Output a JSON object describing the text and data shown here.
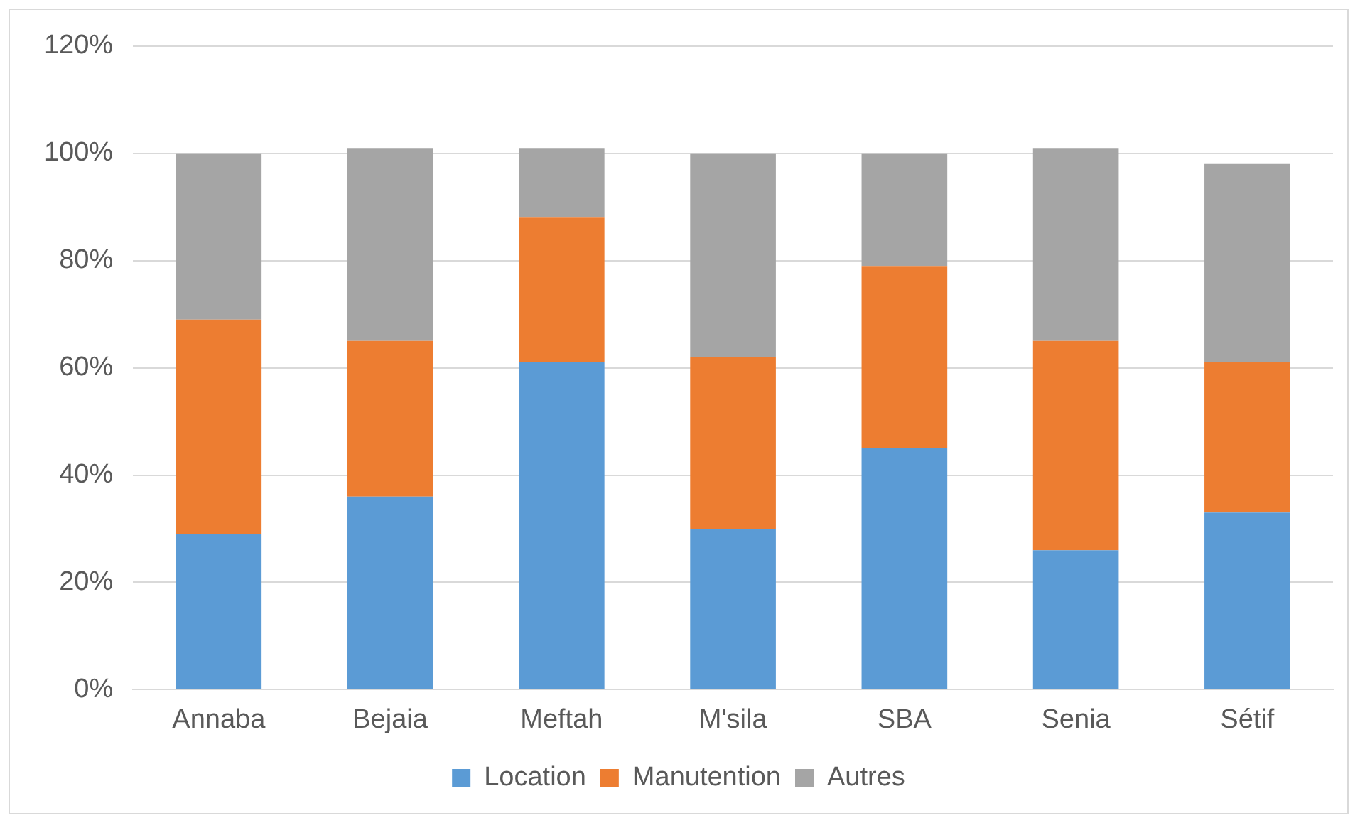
{
  "chart_data": {
    "type": "bar",
    "stacked": true,
    "categories": [
      "Annaba",
      "Bejaia",
      "Meftah",
      "M'sila",
      "SBA",
      "Senia",
      "Sétif"
    ],
    "series": [
      {
        "name": "Location",
        "color": "#5b9bd5",
        "values": [
          29,
          36,
          61,
          30,
          45,
          26,
          33
        ]
      },
      {
        "name": "Manutention",
        "color": "#ed7d31",
        "values": [
          40,
          29,
          27,
          32,
          34,
          39,
          28
        ]
      },
      {
        "name": "Autres",
        "color": "#a5a5a5",
        "values": [
          31,
          36,
          13,
          38,
          21,
          36,
          37
        ]
      }
    ],
    "ylim": [
      0,
      120
    ],
    "yticks": [
      {
        "value": 0,
        "label": "0%"
      },
      {
        "value": 20,
        "label": "20%"
      },
      {
        "value": 40,
        "label": "40%"
      },
      {
        "value": 60,
        "label": "60%"
      },
      {
        "value": 80,
        "label": "80%"
      },
      {
        "value": 100,
        "label": "100%"
      },
      {
        "value": 120,
        "label": "120%"
      }
    ],
    "grid": "y",
    "legend": "bottom"
  }
}
